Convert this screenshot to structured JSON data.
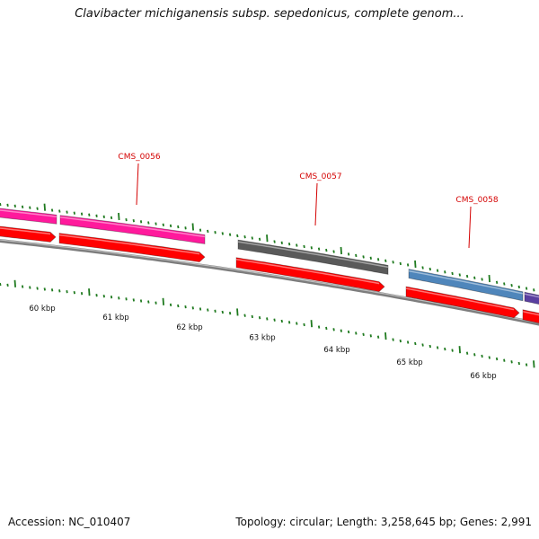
{
  "title": "Clavibacter michiganensis subsp. sepedonicus, complete genom...",
  "footer": {
    "accession": "Accession: NC_010407",
    "summary": "Topology: circular; Length: 3,258,645 bp; Genes: 2,991"
  },
  "colors": {
    "cds_red": "#ff0000",
    "magenta": "#ff1a9c",
    "gray_gene": "#5a5a5a",
    "blue_gene": "#4f86bb",
    "purple_gene": "#5a3fa0",
    "tick_green": "#1f7a1f",
    "backbone": "#888888",
    "label_red": "#d40000"
  },
  "gene_labels": [
    "CMS_0056",
    "CMS_0057",
    "CMS_0058"
  ],
  "scale_labels": [
    "60 kbp",
    "61 kbp",
    "62 kbp",
    "63 kbp",
    "64 kbp",
    "65 kbp",
    "66 kbp"
  ]
}
